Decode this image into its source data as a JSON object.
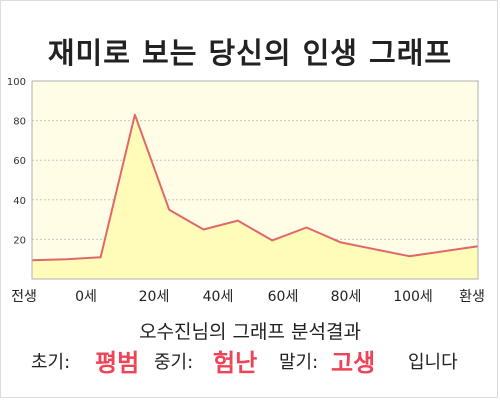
{
  "title": "재미로 보는 당신의 인생 그래프",
  "colors": {
    "plot_background": "#fffde6",
    "area_fill": "#fffbb8",
    "line": "#e06868",
    "grid": "#c8c8c8",
    "highlight": "#ee4455"
  },
  "chart_data": {
    "type": "area",
    "title": "",
    "xlabel": "",
    "ylabel": "",
    "ylim": [
      0,
      100
    ],
    "y_ticks": [
      20,
      40,
      60,
      80,
      100
    ],
    "x_tick_labels": [
      "전생",
      "0세",
      "20세",
      "40세",
      "60세",
      "80세",
      "100세",
      "환생"
    ],
    "series": [
      {
        "values": [
          9.5,
          10,
          11,
          83,
          35,
          25,
          29.5,
          19.5,
          26,
          18.5,
          15,
          11.5,
          14,
          16.5
        ]
      }
    ],
    "grid": true,
    "legend": "none"
  },
  "subtitle": "오수진님의 그래프 분석결과",
  "result": {
    "early_label": "초기:",
    "early_value": "평범",
    "middle_label": "중기:",
    "middle_value": "험난",
    "late_label": "말기:",
    "late_value": "고생",
    "closing": "입니다"
  }
}
